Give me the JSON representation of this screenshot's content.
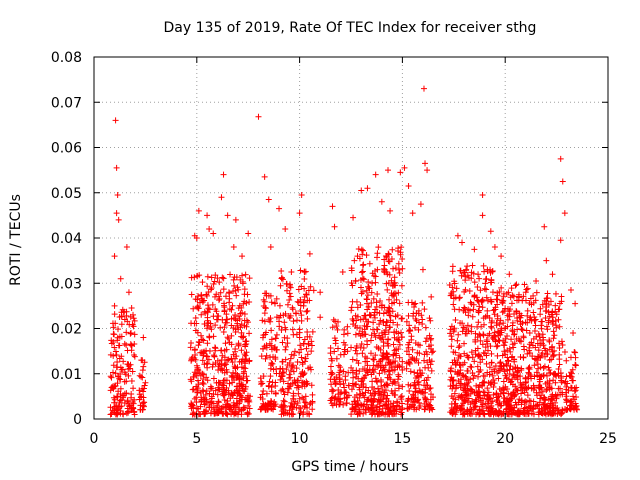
{
  "chart_data": {
    "type": "scatter",
    "title": "Day 135 of 2019, Rate Of TEC Index for receiver sthg",
    "xlabel": "GPS time / hours",
    "ylabel": "ROTI / TECUs",
    "xlim": [
      0,
      25
    ],
    "ylim": [
      0,
      0.08
    ],
    "xticks": [
      0,
      5,
      10,
      15,
      20,
      25
    ],
    "yticks": [
      0,
      0.01,
      0.02,
      0.03,
      0.04,
      0.05,
      0.06,
      0.07,
      0.08
    ],
    "xtick_labels": [
      "0",
      "5",
      "10",
      "15",
      "20",
      "25"
    ],
    "ytick_labels": [
      "0",
      "0.01",
      "0.02",
      "0.03",
      "0.04",
      "0.05",
      "0.06",
      "0.07",
      "0.08"
    ],
    "grid": true,
    "marker": "+",
    "marker_color": "#ff0000",
    "series": [
      {
        "name": "ROTI",
        "points": [
          [
            1.05,
            0.066
          ],
          [
            1.1,
            0.0555
          ],
          [
            1.15,
            0.0495
          ],
          [
            1.1,
            0.0455
          ],
          [
            1.2,
            0.044
          ],
          [
            1.0,
            0.036
          ],
          [
            1.6,
            0.038
          ],
          [
            1.7,
            0.028
          ],
          [
            1.0,
            0.025
          ],
          [
            1.3,
            0.031
          ],
          [
            1.5,
            0.022
          ],
          [
            1.8,
            0.019
          ],
          [
            2.4,
            0.018
          ],
          [
            2.3,
            0.013
          ],
          [
            2.5,
            0.008
          ],
          [
            2.3,
            0.005
          ],
          [
            2.4,
            0.003
          ],
          [
            4.9,
            0.0405
          ],
          [
            5.1,
            0.046
          ],
          [
            5.0,
            0.04
          ],
          [
            5.5,
            0.045
          ],
          [
            5.6,
            0.042
          ],
          [
            5.8,
            0.041
          ],
          [
            6.2,
            0.049
          ],
          [
            6.3,
            0.054
          ],
          [
            6.5,
            0.045
          ],
          [
            6.9,
            0.044
          ],
          [
            6.8,
            0.038
          ],
          [
            7.2,
            0.036
          ],
          [
            8.0,
            0.0668
          ],
          [
            7.5,
            0.041
          ],
          [
            8.3,
            0.0535
          ],
          [
            8.5,
            0.0485
          ],
          [
            8.6,
            0.038
          ],
          [
            9.0,
            0.0465
          ],
          [
            9.3,
            0.042
          ],
          [
            9.6,
            0.0325
          ],
          [
            10.0,
            0.0455
          ],
          [
            10.1,
            0.0495
          ],
          [
            10.5,
            0.0365
          ],
          [
            11.0,
            0.028
          ],
          [
            11.0,
            0.0225
          ],
          [
            11.6,
            0.047
          ],
          [
            11.7,
            0.0425
          ],
          [
            12.1,
            0.0325
          ],
          [
            12.6,
            0.0445
          ],
          [
            13.0,
            0.0505
          ],
          [
            13.3,
            0.051
          ],
          [
            13.7,
            0.054
          ],
          [
            14.0,
            0.048
          ],
          [
            14.3,
            0.055
          ],
          [
            14.4,
            0.046
          ],
          [
            14.9,
            0.0545
          ],
          [
            15.1,
            0.0555
          ],
          [
            15.3,
            0.0515
          ],
          [
            15.5,
            0.0455
          ],
          [
            15.9,
            0.0475
          ],
          [
            16.05,
            0.073
          ],
          [
            16.1,
            0.0565
          ],
          [
            16.2,
            0.055
          ],
          [
            16.0,
            0.033
          ],
          [
            16.4,
            0.027
          ],
          [
            17.7,
            0.0405
          ],
          [
            17.9,
            0.039
          ],
          [
            18.1,
            0.033
          ],
          [
            18.5,
            0.0375
          ],
          [
            18.9,
            0.0495
          ],
          [
            18.9,
            0.045
          ],
          [
            19.3,
            0.0415
          ],
          [
            19.5,
            0.038
          ],
          [
            19.8,
            0.036
          ],
          [
            20.2,
            0.032
          ],
          [
            20.5,
            0.0295
          ],
          [
            21.0,
            0.028
          ],
          [
            21.5,
            0.0305
          ],
          [
            21.9,
            0.0425
          ],
          [
            22.0,
            0.035
          ],
          [
            22.3,
            0.032
          ],
          [
            22.7,
            0.0575
          ],
          [
            22.8,
            0.0525
          ],
          [
            22.9,
            0.0455
          ],
          [
            22.7,
            0.0395
          ],
          [
            23.2,
            0.0285
          ],
          [
            23.4,
            0.0255
          ],
          [
            23.3,
            0.019
          ],
          [
            23.4,
            0.012
          ],
          [
            23.3,
            0.005
          ]
        ],
        "dense_clusters": [
          {
            "x_range": [
              0.8,
              2.0
            ],
            "y_range": [
              0.001,
              0.025
            ],
            "n": 160
          },
          {
            "x_range": [
              2.2,
              2.5
            ],
            "y_range": [
              0.002,
              0.014
            ],
            "n": 25
          },
          {
            "x_range": [
              4.7,
              7.6
            ],
            "y_range": [
              0.001,
              0.032
            ],
            "n": 520
          },
          {
            "x_range": [
              8.1,
              8.9
            ],
            "y_range": [
              0.002,
              0.028
            ],
            "n": 110
          },
          {
            "x_range": [
              9.0,
              10.7
            ],
            "y_range": [
              0.001,
              0.033
            ],
            "n": 230
          },
          {
            "x_range": [
              11.5,
              12.4
            ],
            "y_range": [
              0.003,
              0.022
            ],
            "n": 90
          },
          {
            "x_range": [
              12.5,
              15.0
            ],
            "y_range": [
              0.001,
              0.038
            ],
            "n": 520
          },
          {
            "x_range": [
              15.2,
              16.5
            ],
            "y_range": [
              0.002,
              0.026
            ],
            "n": 160
          },
          {
            "x_range": [
              17.3,
              19.5
            ],
            "y_range": [
              0.001,
              0.034
            ],
            "n": 420
          },
          {
            "x_range": [
              19.5,
              21.2
            ],
            "y_range": [
              0.001,
              0.03
            ],
            "n": 330
          },
          {
            "x_range": [
              21.2,
              22.8
            ],
            "y_range": [
              0.001,
              0.028
            ],
            "n": 280
          },
          {
            "x_range": [
              22.9,
              23.5
            ],
            "y_range": [
              0.002,
              0.015
            ],
            "n": 60
          }
        ]
      }
    ]
  }
}
